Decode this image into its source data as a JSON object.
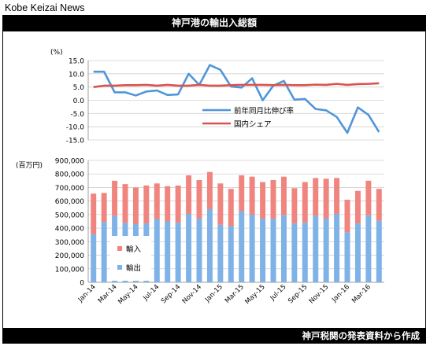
{
  "brand": "Kobe Keizai News",
  "header": {
    "title": "神戸港の輸出入総額"
  },
  "footer": {
    "source": "神戸税関の発表資料から作成"
  },
  "colors": {
    "import": "#f0857f",
    "export": "#7fb2e6",
    "yoy_line": "#4f96d8",
    "share_line": "#d9534f"
  },
  "chart_data": [
    {
      "type": "line",
      "ylabel": "(%)",
      "ylim": [
        -15,
        15
      ],
      "yticks": [
        "15.0",
        "10.0",
        "5.0",
        "0.0",
        "-5.0",
        "-10.0",
        "-15.0"
      ],
      "grid": true,
      "legend_position": "inside-right",
      "series": [
        {
          "name": "前年同月比伸び率",
          "values": [
            10.8,
            10.8,
            3.0,
            3.0,
            1.8,
            3.3,
            3.7,
            2.0,
            2.2,
            10.0,
            5.8,
            13.3,
            11.5,
            5.2,
            4.8,
            8.3,
            0.0,
            5.5,
            7.3,
            0.2,
            0.5,
            -3.3,
            -3.8,
            -6.3,
            -12.3,
            -2.7,
            -5.5,
            -12.0
          ]
        },
        {
          "name": "国内シェア",
          "values": [
            5.0,
            5.5,
            5.5,
            5.7,
            5.7,
            5.8,
            5.5,
            5.8,
            5.5,
            5.5,
            5.8,
            5.5,
            5.5,
            5.7,
            5.8,
            5.8,
            5.8,
            5.7,
            5.8,
            5.7,
            5.7,
            5.9,
            5.8,
            6.2,
            5.8,
            6.1,
            6.2,
            6.4
          ]
        }
      ]
    },
    {
      "type": "bar",
      "stacked": true,
      "ylabel": "(百万円)",
      "ylim": [
        0,
        900000
      ],
      "yticks": [
        "900,000",
        "800,000",
        "700,000",
        "600,000",
        "500,000",
        "400,000",
        "300,000",
        "200,000",
        "100,000",
        "0"
      ],
      "grid": true,
      "legend_position": "inside-left",
      "categories": [
        "Jan-14",
        "Feb-14",
        "Mar-14",
        "Apr-14",
        "May-14",
        "Jun-14",
        "Jul-14",
        "Aug-14",
        "Sep-14",
        "Oct-14",
        "Nov-14",
        "Dec-14",
        "Jan-15",
        "Feb-15",
        "Mar-15",
        "Apr-15",
        "May-15",
        "Jun-15",
        "Jul-15",
        "Aug-15",
        "Sep-15",
        "Oct-15",
        "Nov-15",
        "Dec-15",
        "Jan-16",
        "Feb-16",
        "Mar-16",
        "Apr-16"
      ],
      "x_tick_labels": [
        "Jan-14",
        "Mar-14",
        "May-14",
        "Jul-14",
        "Sep-14",
        "Nov-14",
        "Jan-15",
        "Mar-15",
        "May-15",
        "Jul-15",
        "Sep-15",
        "Nov-15",
        "Jan-16",
        "Mar-16"
      ],
      "series": [
        {
          "name": "輸出",
          "values": [
            355000,
            445000,
            490000,
            440000,
            430000,
            435000,
            465000,
            450000,
            440000,
            505000,
            470000,
            540000,
            425000,
            415000,
            525000,
            500000,
            470000,
            470000,
            495000,
            435000,
            440000,
            490000,
            470000,
            505000,
            370000,
            435000,
            495000,
            455000
          ]
        },
        {
          "name": "輸入",
          "values": [
            300000,
            215000,
            260000,
            285000,
            270000,
            280000,
            265000,
            260000,
            275000,
            285000,
            285000,
            275000,
            305000,
            275000,
            265000,
            280000,
            270000,
            285000,
            285000,
            260000,
            300000,
            280000,
            295000,
            265000,
            240000,
            240000,
            255000,
            235000
          ]
        }
      ]
    }
  ]
}
